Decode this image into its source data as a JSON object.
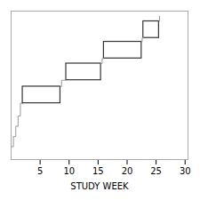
{
  "chart_data": {
    "type": "boxes",
    "xlabel": "STUDY WEEK",
    "xlim": [
      0,
      30.5
    ],
    "ylim": [
      0,
      5.8
    ],
    "xticks": [
      5,
      10,
      15,
      20,
      25,
      30
    ],
    "tick_labels": "x",
    "series": [
      {
        "type": "line",
        "color": "#999999",
        "x": [
          0.0,
          0.4,
          0.4,
          0.8,
          0.8,
          1.2,
          1.2,
          1.6,
          1.6,
          2.0
        ],
        "y": [
          0.5,
          0.5,
          0.9,
          0.9,
          1.3,
          1.3,
          1.7,
          1.7,
          2.2,
          2.2
        ]
      },
      {
        "type": "box",
        "color": "#333333",
        "x0": 2.0,
        "x1": 8.5,
        "y0": 2.2,
        "y1": 2.85
      },
      {
        "type": "box",
        "color": "#333333",
        "x0": 9.5,
        "x1": 15.5,
        "y0": 3.1,
        "y1": 3.75
      },
      {
        "type": "box",
        "color": "#333333",
        "x0": 16.0,
        "x1": 22.5,
        "y0": 3.95,
        "y1": 4.6
      },
      {
        "type": "box",
        "color": "#333333",
        "x0": 22.8,
        "x1": 25.5,
        "y0": 4.75,
        "y1": 5.4
      },
      {
        "type": "line",
        "color": "#999999",
        "x": [
          8.5,
          8.7,
          8.7,
          9.0,
          9.0,
          9.5
        ],
        "y": [
          2.85,
          2.85,
          3.1,
          3.1,
          3.1,
          3.1
        ]
      },
      {
        "type": "line",
        "color": "#999999",
        "x": [
          15.5,
          15.7,
          15.7,
          16.0,
          16.0,
          16.0
        ],
        "y": [
          3.75,
          3.75,
          3.95,
          3.95,
          3.95,
          3.95
        ]
      },
      {
        "type": "line",
        "color": "#999999",
        "x": [
          22.5,
          22.6,
          22.6,
          22.8
        ],
        "y": [
          4.6,
          4.6,
          4.75,
          4.75
        ]
      },
      {
        "type": "line",
        "color": "#999999",
        "x": [
          25.5,
          25.6,
          25.6
        ],
        "y": [
          5.4,
          5.4,
          5.6
        ]
      }
    ]
  }
}
